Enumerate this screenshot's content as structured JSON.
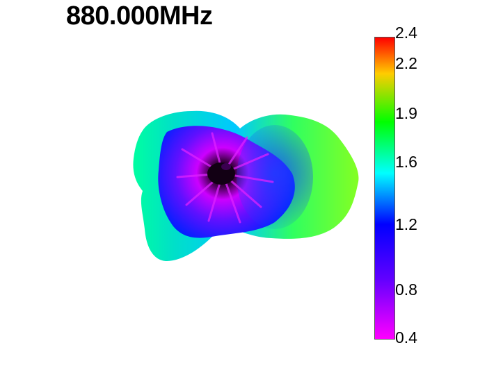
{
  "title": "880.000MHz",
  "colorbar": {
    "min": 0.4,
    "max": 2.4,
    "tick_labels": [
      "2.4",
      "2.2",
      "1.9",
      "1.6",
      "1.2",
      "0.8",
      "0.4"
    ],
    "tick_values": [
      2.4,
      2.2,
      1.9,
      1.6,
      1.2,
      0.8,
      0.4
    ],
    "colors": {
      "low": "#ff00ff",
      "mid_low": "#0000ff",
      "mid": "#00ffff",
      "mid_high": "#00ff00",
      "high_mid": "#ffff00",
      "high": "#ff0000"
    }
  },
  "pattern": {
    "name": "3D radiation pattern",
    "center_color": "#1a001a",
    "inner_color": "#cc00ff",
    "middle_color": "#0033ff",
    "outer_color_left": "#00e8c0",
    "outer_color_right": "#66ff33"
  }
}
